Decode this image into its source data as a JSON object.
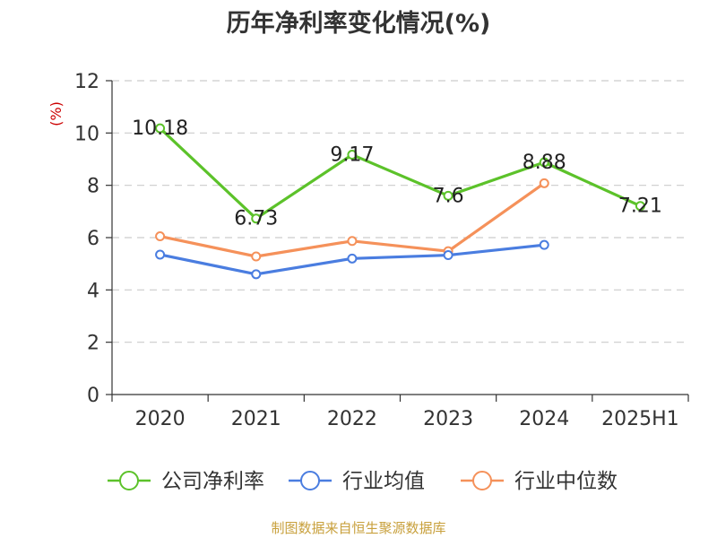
{
  "chart_data": {
    "type": "line",
    "title": "历年净利率变化情况(%)",
    "ylabel": "(%)",
    "categories": [
      "2020",
      "2021",
      "2022",
      "2023",
      "2024",
      "2025H1"
    ],
    "ylim": [
      0,
      12
    ],
    "yticks": [
      0,
      2,
      4,
      6,
      8,
      10,
      12
    ],
    "grid": true,
    "legend_position": "bottom",
    "series": [
      {
        "name": "公司净利率",
        "color": "#5cc22a",
        "values": [
          10.18,
          6.73,
          9.17,
          7.6,
          8.88,
          7.21
        ],
        "labels": [
          "10.18",
          "6.73",
          "9.17",
          "7.6",
          "8.88",
          "7.21"
        ]
      },
      {
        "name": "行业均值",
        "color": "#4a7de0",
        "values": [
          5.35,
          4.6,
          5.2,
          5.33,
          5.72,
          null
        ]
      },
      {
        "name": "行业中位数",
        "color": "#f5915a",
        "values": [
          6.05,
          5.28,
          5.87,
          5.48,
          8.08,
          null
        ]
      }
    ]
  },
  "source": "制图数据来自恒生聚源数据库"
}
